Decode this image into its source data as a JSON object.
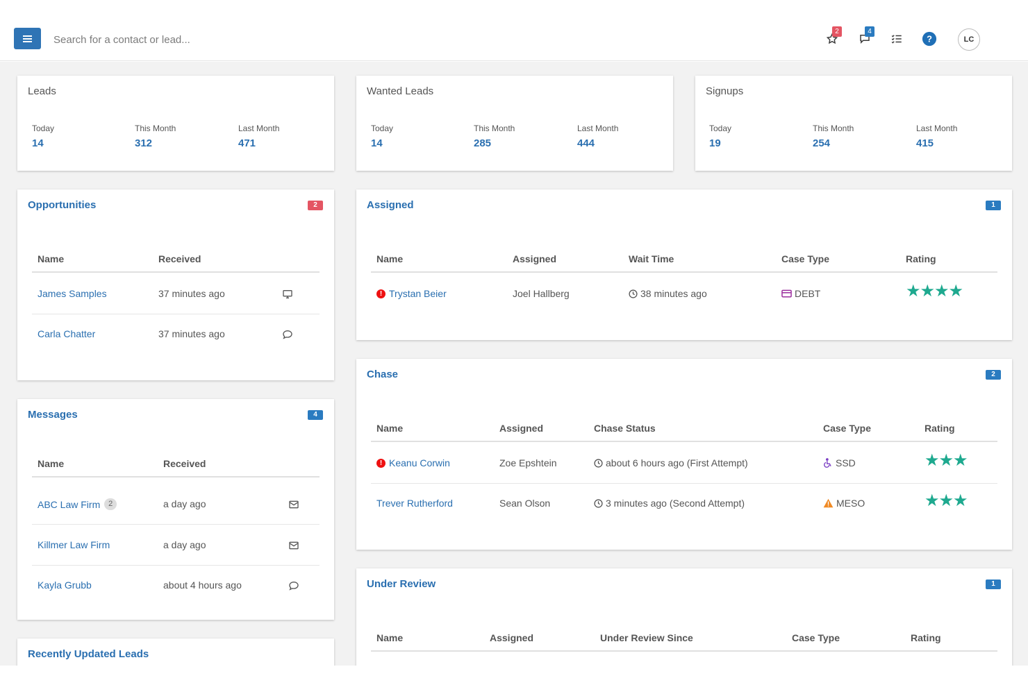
{
  "topbar": {
    "search_placeholder": "Search for a contact or lead...",
    "favorites_count": "2",
    "messages_count": "4",
    "avatar_initials": "LC",
    "icons": [
      "menu-icon",
      "star-icon",
      "chat-icon",
      "checklist-icon",
      "help-icon"
    ]
  },
  "colors": {
    "brand": "#2f74b5",
    "link": "#2a6fb0",
    "badge_red": "#e45563",
    "badge_blue": "#2a7bc0",
    "star": "#1ea98f",
    "debt": "#9b2f9e",
    "ssd": "#7b3fc4",
    "meso": "#f08a24",
    "alert": "#e11111"
  },
  "stats": [
    {
      "title": "Leads",
      "labels": [
        "Today",
        "This Month",
        "Last Month"
      ],
      "values": [
        "14",
        "312",
        "471"
      ]
    },
    {
      "title": "Wanted Leads",
      "labels": [
        "Today",
        "This Month",
        "Last Month"
      ],
      "values": [
        "14",
        "285",
        "444"
      ]
    },
    {
      "title": "Signups",
      "labels": [
        "Today",
        "This Month",
        "Last Month"
      ],
      "values": [
        "19",
        "254",
        "415"
      ]
    }
  ],
  "opportunities": {
    "title": "Opportunities",
    "badge": "2",
    "headers": [
      "Name",
      "Received"
    ],
    "rows": [
      {
        "name": "James Samples",
        "received": "37 minutes ago",
        "icon": "desktop-icon"
      },
      {
        "name": "Carla Chatter",
        "received": "37 minutes ago",
        "icon": "chat-icon"
      }
    ]
  },
  "messages": {
    "title": "Messages",
    "badge": "4",
    "headers": [
      "Name",
      "Received"
    ],
    "rows": [
      {
        "name": "ABC Law Firm",
        "count": "2",
        "received": "a day ago",
        "icon": "envelope-icon"
      },
      {
        "name": "Killmer Law Firm",
        "count": "",
        "received": "a day ago",
        "icon": "envelope-icon"
      },
      {
        "name": "Kayla Grubb",
        "count": "",
        "received": "about 4 hours ago",
        "icon": "chat-icon"
      }
    ]
  },
  "recent": {
    "title": "Recently Updated Leads"
  },
  "assigned": {
    "title": "Assigned",
    "badge": "1",
    "headers": [
      "Name",
      "Assigned",
      "Wait Time",
      "Case Type",
      "Rating"
    ],
    "rows": [
      {
        "name": "Trystan Beier",
        "alert": true,
        "assigned": "Joel Hallberg",
        "wait": "38 minutes ago",
        "case_type": "DEBT",
        "case_icon": "credit-card-icon",
        "rating": 4
      }
    ]
  },
  "chase": {
    "title": "Chase",
    "badge": "2",
    "headers": [
      "Name",
      "Assigned",
      "Chase Status",
      "Case Type",
      "Rating"
    ],
    "rows": [
      {
        "name": "Keanu Corwin",
        "alert": true,
        "assigned": "Zoe Epshtein",
        "status": "about 6 hours ago (First Attempt)",
        "case_type": "SSD",
        "case_icon": "wheelchair-icon",
        "rating": 3
      },
      {
        "name": "Trever Rutherford",
        "alert": false,
        "assigned": "Sean Olson",
        "status": "3 minutes ago (Second Attempt)",
        "case_type": "MESO",
        "case_icon": "warning-icon",
        "rating": 3
      }
    ]
  },
  "under_review": {
    "title": "Under Review",
    "badge": "1",
    "headers": [
      "Name",
      "Assigned",
      "Under Review Since",
      "Case Type",
      "Rating"
    ]
  }
}
